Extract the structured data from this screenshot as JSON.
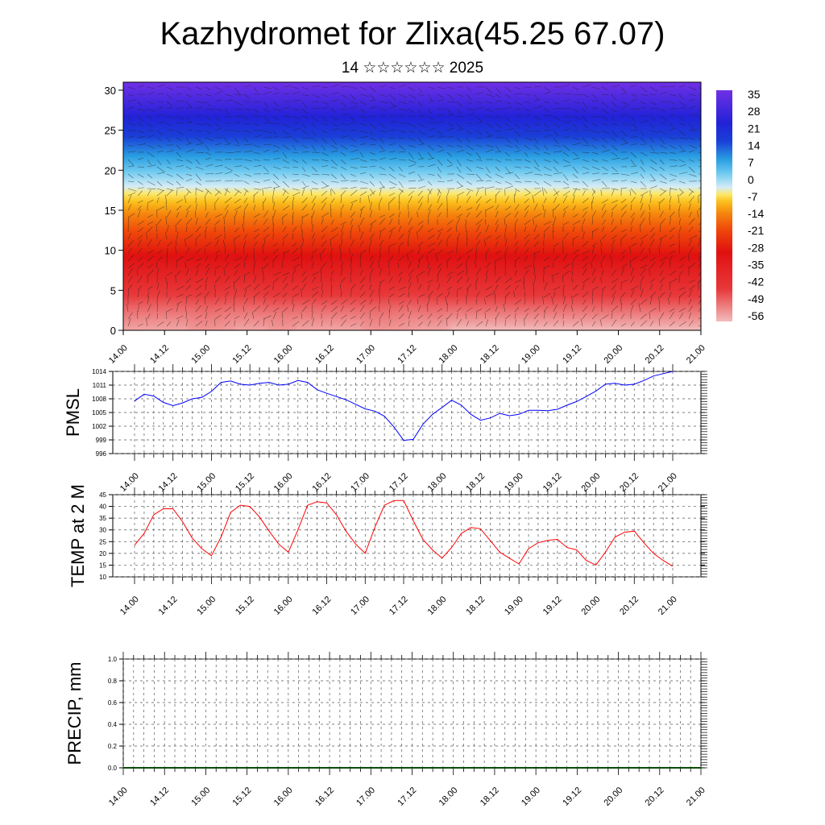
{
  "title": "Kazhydromet for Zlixa(45.25 67.07)",
  "subtitle": "14 ☆☆☆☆☆☆ 2025",
  "chart_data": [
    {
      "type": "heatmap",
      "ylabel": "",
      "x_ticks": [
        "14.00",
        "14.12",
        "15.00",
        "15.12",
        "16.00",
        "16.12",
        "17.00",
        "17.12",
        "18.00",
        "18.12",
        "19.00",
        "19.12",
        "20.00",
        "20.12",
        "21.00"
      ],
      "y_ticks": [
        0,
        5,
        10,
        15,
        20,
        25,
        30
      ],
      "ylim": [
        0,
        31
      ],
      "colorbar_labels": [
        "35",
        "28",
        "21",
        "14",
        "7",
        "0",
        "-7",
        "-14",
        "-21",
        "-28",
        "-35",
        "-42",
        "-49",
        "-56"
      ],
      "colorbar_colors": [
        "#f4c6c6",
        "#ea5a5a",
        "#e01010",
        "#f03a0a",
        "#f5660a",
        "#f8960f",
        "#fbc21e",
        "#fde86a",
        "#d7ecf6",
        "#7ed0f2",
        "#27a8e4",
        "#1c68d8",
        "#2f2cde",
        "#6a2ce6"
      ],
      "profile_levels_km": [
        0,
        5,
        10,
        15,
        20,
        25,
        30
      ],
      "profile_values": [
        35,
        21,
        14,
        0,
        -28,
        -56,
        -49
      ]
    },
    {
      "type": "line",
      "ylabel": "PMSL",
      "x_ticks": [
        "14.00",
        "14.12",
        "15.00",
        "15.12",
        "16.00",
        "16.12",
        "17.00",
        "17.12",
        "18.00",
        "18.12",
        "19.00",
        "19.12",
        "20.00",
        "20.12",
        "21.00"
      ],
      "y_ticks": [
        "996",
        "999",
        "1002",
        "1005",
        "1008",
        "1011",
        "1014"
      ],
      "ylim": [
        996,
        1014
      ],
      "color": "#0000ff",
      "values": [
        1007.5,
        1009.0,
        1008.6,
        1007.2,
        1006.5,
        1007.1,
        1008.0,
        1008.3,
        1009.6,
        1011.6,
        1011.9,
        1011.2,
        1011.0,
        1011.4,
        1011.6,
        1011.0,
        1011.2,
        1012.0,
        1011.6,
        1010.0,
        1009.2,
        1008.5,
        1007.8,
        1006.8,
        1005.8,
        1005.3,
        1004.2,
        1001.8,
        998.9,
        999.1,
        1002.4,
        1004.6,
        1006.1,
        1007.7,
        1006.6,
        1004.6,
        1003.3,
        1003.8,
        1004.8,
        1004.3,
        1004.6,
        1005.5,
        1005.5,
        1005.4,
        1005.7,
        1006.6,
        1007.4,
        1008.5,
        1009.7,
        1011.2,
        1011.4,
        1011.0,
        1011.2,
        1012.0,
        1013.0,
        1013.5,
        1014.0
      ]
    },
    {
      "type": "line",
      "ylabel": "TEMP at 2 M",
      "x_ticks": [
        "14.00",
        "14.12",
        "15.00",
        "15.12",
        "16.00",
        "16.12",
        "17.00",
        "17.12",
        "18.00",
        "18.12",
        "19.00",
        "19.12",
        "20.00",
        "20.12",
        "21.00"
      ],
      "y_ticks": [
        "10",
        "15",
        "20",
        "25",
        "30",
        "35",
        "40",
        "45"
      ],
      "ylim": [
        10,
        45
      ],
      "color": "#ff0000",
      "values": [
        23.5,
        28.5,
        36.5,
        39.0,
        39.0,
        33.5,
        26.5,
        22.0,
        19.0,
        27.0,
        37.5,
        40.5,
        40.0,
        35.5,
        29.5,
        24.0,
        20.5,
        30.0,
        40.5,
        42.0,
        41.5,
        36.5,
        29.5,
        24.0,
        20.0,
        31.0,
        40.5,
        42.5,
        42.5,
        34.0,
        26.0,
        21.5,
        18.0,
        22.5,
        28.5,
        31.0,
        30.5,
        25.5,
        20.5,
        18.0,
        15.5,
        22.0,
        24.5,
        25.5,
        26.0,
        22.5,
        21.5,
        17.0,
        15.0,
        20.5,
        27.0,
        29.0,
        29.5,
        24.5,
        20.0,
        17.0,
        14.5
      ]
    },
    {
      "type": "bar",
      "ylabel": "PRECIP, mm",
      "x_ticks": [
        "14.00",
        "14.12",
        "15.00",
        "15.12",
        "16.00",
        "16.12",
        "17.00",
        "17.12",
        "18.00",
        "18.12",
        "19.00",
        "19.12",
        "20.00",
        "20.12",
        "21.00"
      ],
      "y_ticks": [
        "0.0",
        "0.2",
        "0.4",
        "0.6",
        "0.8",
        "1.0"
      ],
      "ylim": [
        0,
        1
      ],
      "values": [
        0,
        0,
        0,
        0,
        0,
        0,
        0,
        0,
        0,
        0,
        0,
        0,
        0,
        0,
        0
      ]
    }
  ]
}
